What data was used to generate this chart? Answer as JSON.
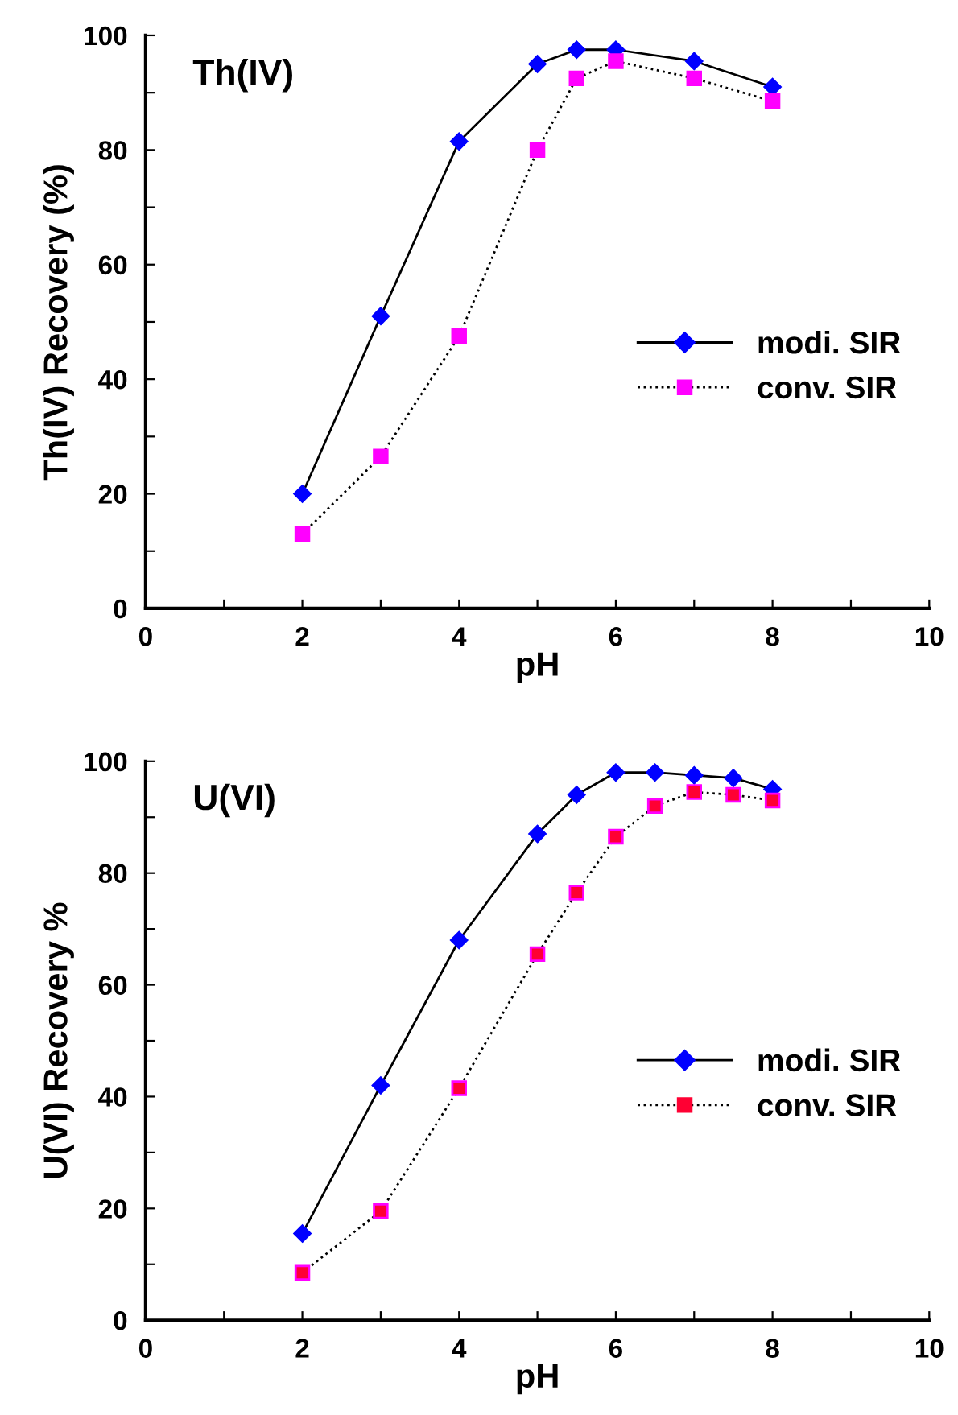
{
  "chart_data": [
    {
      "type": "line",
      "title": "Th(IV)",
      "xlabel": "pH",
      "ylabel": "Th(IV) Recovery (%)",
      "xlim": [
        0,
        10
      ],
      "ylim": [
        0,
        100
      ],
      "xticks": [
        0,
        {
          "value": 1,
          "label": null
        },
        2,
        {
          "value": 3,
          "label": null
        },
        4,
        {
          "value": 5,
          "label": null
        },
        6,
        {
          "value": 7,
          "label": null
        },
        8,
        {
          "value": 9,
          "label": null
        },
        10
      ],
      "yticks": [
        0,
        {
          "value": 10,
          "label": null
        },
        20,
        {
          "value": 30,
          "label": null
        },
        40,
        {
          "value": 50,
          "label": null
        },
        60,
        {
          "value": 70,
          "label": null
        },
        80,
        {
          "value": 90,
          "label": null
        },
        100
      ],
      "grid": false,
      "legend": "right",
      "series": [
        {
          "name": "modi. SIR",
          "color": "#0000ff",
          "marker": "diamond",
          "line_style": "solid",
          "x": [
            2,
            3,
            4,
            5,
            5.5,
            6,
            7,
            8
          ],
          "values": [
            20,
            51,
            81.5,
            95,
            97.5,
            97.5,
            95.5,
            91
          ]
        },
        {
          "name": "conv. SIR",
          "color": "#ff00ff",
          "marker": "square",
          "line_style": "dotted",
          "x": [
            2,
            3,
            4,
            5,
            5.5,
            6,
            7,
            8
          ],
          "values": [
            13,
            26.5,
            47.5,
            80,
            92.5,
            95.5,
            92.5,
            88.5
          ]
        }
      ]
    },
    {
      "type": "line",
      "title": "U(VI)",
      "xlabel": "pH",
      "ylabel": "U(VI) Recovery %",
      "xlim": [
        0,
        10
      ],
      "ylim": [
        0,
        100
      ],
      "xticks": [
        0,
        {
          "value": 1,
          "label": null
        },
        2,
        {
          "value": 3,
          "label": null
        },
        4,
        {
          "value": 5,
          "label": null
        },
        6,
        {
          "value": 7,
          "label": null
        },
        8,
        {
          "value": 9,
          "label": null
        },
        10
      ],
      "yticks": [
        0,
        {
          "value": 10,
          "label": null
        },
        20,
        {
          "value": 30,
          "label": null
        },
        40,
        {
          "value": 50,
          "label": null
        },
        60,
        {
          "value": 70,
          "label": null
        },
        80,
        {
          "value": 90,
          "label": null
        },
        100
      ],
      "grid": false,
      "legend": "right",
      "series": [
        {
          "name": "modi. SIR",
          "color": "#0000ff",
          "marker": "diamond",
          "line_style": "solid",
          "x": [
            2,
            3,
            4,
            5,
            5.5,
            6,
            6.5,
            7,
            7.5,
            8
          ],
          "values": [
            15.5,
            42,
            68,
            87,
            94,
            98,
            98,
            97.5,
            97,
            95
          ]
        },
        {
          "name": "conv. SIR",
          "color": "#ff0033",
          "marker": "square",
          "line_style": "dotted",
          "x": [
            2,
            3,
            4,
            5,
            5.5,
            6,
            6.5,
            7,
            7.5,
            8
          ],
          "values": [
            8.5,
            19.5,
            41.5,
            65.5,
            76.5,
            86.5,
            92,
            94.5,
            94,
            93
          ]
        }
      ]
    }
  ]
}
